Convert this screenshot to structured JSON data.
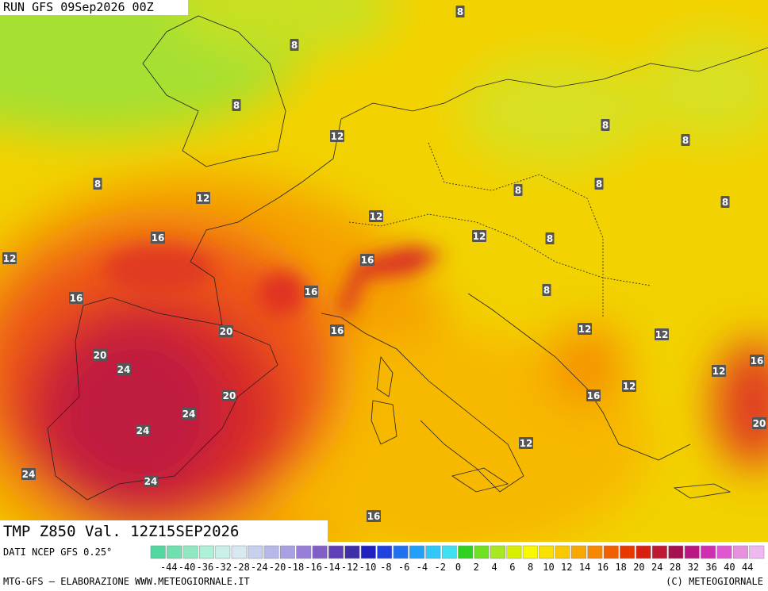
{
  "header": {
    "run": "RUN GFS 09Sep2026 00Z"
  },
  "caption": {
    "title": "TMP Z850 Val. 12Z15SEP2026"
  },
  "contour_labels": [
    8,
    8,
    8,
    12,
    8,
    8,
    8,
    12,
    8,
    8,
    8,
    12,
    12,
    8,
    16,
    12,
    16,
    8,
    16,
    16,
    16,
    20,
    12,
    12,
    20,
    24,
    16,
    12,
    20,
    24,
    16,
    12,
    24,
    20,
    24,
    24,
    12,
    16
  ],
  "legend": {
    "source": "DATI NCEP GFS 0.25°",
    "ticks": [
      "-44",
      "-40",
      "-36",
      "-32",
      "-28",
      "-24",
      "-20",
      "-18",
      "-16",
      "-14",
      "-12",
      "-10",
      "-8",
      "-6",
      "-4",
      "-2",
      "0",
      "2",
      "4",
      "6",
      "8",
      "10",
      "12",
      "14",
      "16",
      "18",
      "20",
      "24",
      "28",
      "32",
      "36",
      "40",
      "44"
    ]
  },
  "footer": {
    "credits": "MTG-GFS — ELABORAZIONE WWW.METEOGIORNALE.IT",
    "copyright": "(C) METEOGIORNALE"
  }
}
